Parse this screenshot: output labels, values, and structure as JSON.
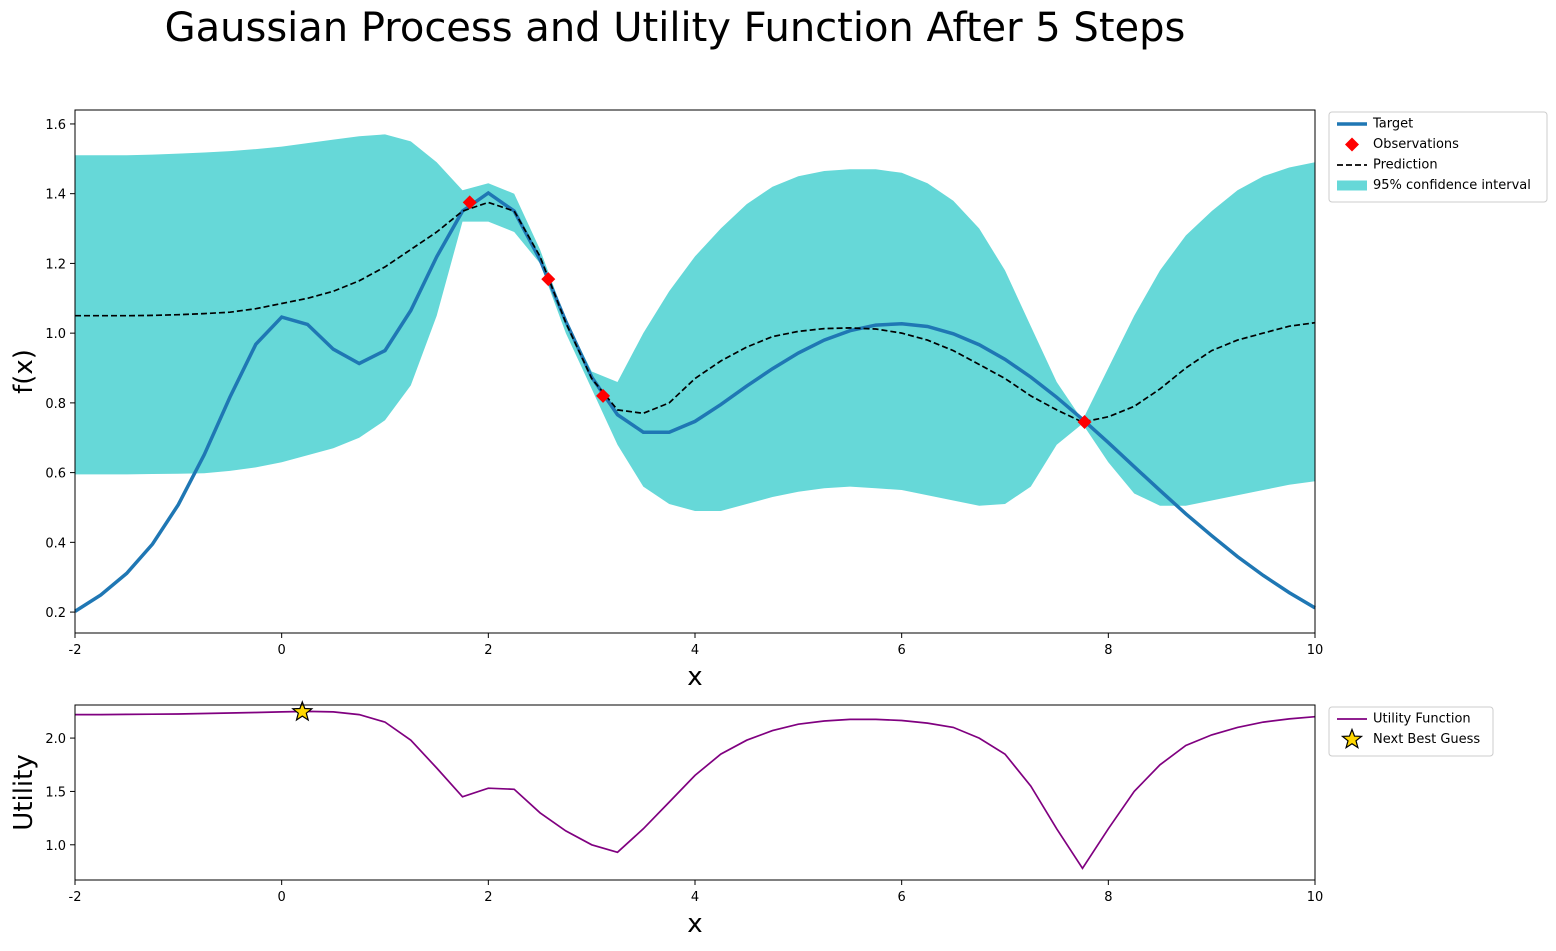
{
  "title": "Gaussian Process and Utility Function After 5 Steps",
  "chart_data": [
    {
      "type": "line",
      "xlabel": "x",
      "ylabel": "f(x)",
      "xlim": [
        -2,
        10
      ],
      "ylim": [
        0.14,
        1.64
      ],
      "xticks": [
        -2,
        0,
        2,
        4,
        6,
        8,
        10
      ],
      "yticks": [
        0.2,
        0.4,
        0.6,
        0.8,
        {
          "value": 1,
          "label": "1.0"
        },
        1.2,
        1.4,
        1.6
      ],
      "legend": "outside-upper-right",
      "x": [
        -2,
        -1.75,
        -1.5,
        -1.25,
        -1,
        -0.75,
        -0.5,
        -0.25,
        0,
        0.25,
        0.5,
        0.75,
        1,
        1.25,
        1.5,
        1.75,
        2,
        2.25,
        2.5,
        2.75,
        3,
        3.25,
        3.5,
        3.75,
        4,
        4.25,
        4.5,
        4.75,
        5,
        5.25,
        5.5,
        5.75,
        6,
        6.25,
        6.5,
        6.75,
        7,
        7.25,
        7.5,
        7.75,
        8,
        8.25,
        8.5,
        8.75,
        9,
        9.25,
        9.5,
        9.75,
        10
      ],
      "series": [
        {
          "name": "Target",
          "kind": "line",
          "color": "#1f77b4",
          "values": [
            0.202,
            0.249,
            0.311,
            0.395,
            0.508,
            0.651,
            0.817,
            0.968,
            1.046,
            1.025,
            0.954,
            0.913,
            0.95,
            1.065,
            1.219,
            1.35,
            1.402,
            1.35,
            1.211,
            1.034,
            0.874,
            0.766,
            0.716,
            0.716,
            0.747,
            0.795,
            0.848,
            0.898,
            0.943,
            0.98,
            1.007,
            1.023,
            1.027,
            1.019,
            0.998,
            0.967,
            0.925,
            0.874,
            0.816,
            0.753,
            0.686,
            0.617,
            0.549,
            0.482,
            0.419,
            0.359,
            0.305,
            0.256,
            0.212
          ]
        },
        {
          "name": "Observations",
          "kind": "scatter",
          "marker": "diamond",
          "color": "#ff0000",
          "x": [
            1.82,
            2.58,
            3.11,
            7.77
          ],
          "values": [
            1.375,
            1.155,
            0.82,
            0.745
          ]
        },
        {
          "name": "Prediction",
          "kind": "line",
          "dashed": true,
          "color": "#000000",
          "values": [
            1.05,
            1.05,
            1.05,
            1.051,
            1.053,
            1.056,
            1.06,
            1.07,
            1.085,
            1.1,
            1.12,
            1.15,
            1.19,
            1.24,
            1.29,
            1.35,
            1.375,
            1.35,
            1.22,
            1.03,
            0.87,
            0.78,
            0.77,
            0.8,
            0.87,
            0.92,
            0.96,
            0.99,
            1.005,
            1.013,
            1.015,
            1.012,
            1.0,
            0.98,
            0.95,
            0.91,
            0.87,
            0.82,
            0.78,
            0.745,
            0.76,
            0.79,
            0.84,
            0.9,
            0.95,
            0.98,
            1.0,
            1.02,
            1.03
          ]
        },
        {
          "name": "95% confidence interval",
          "kind": "band",
          "color": "#66d8d8",
          "lower": [
            0.595,
            0.595,
            0.595,
            0.596,
            0.597,
            0.598,
            0.605,
            0.615,
            0.63,
            0.65,
            0.67,
            0.7,
            0.75,
            0.85,
            1.05,
            1.32,
            1.32,
            1.29,
            1.2,
            1.0,
            0.84,
            0.68,
            0.56,
            0.51,
            0.49,
            0.49,
            0.51,
            0.53,
            0.545,
            0.555,
            0.56,
            0.555,
            0.55,
            0.535,
            0.52,
            0.505,
            0.51,
            0.56,
            0.68,
            0.74,
            0.63,
            0.54,
            0.505,
            0.505,
            0.52,
            0.535,
            0.55,
            0.565,
            0.575
          ],
          "upper": [
            1.51,
            1.51,
            1.51,
            1.512,
            1.515,
            1.518,
            1.522,
            1.528,
            1.535,
            1.545,
            1.555,
            1.565,
            1.57,
            1.55,
            1.49,
            1.41,
            1.43,
            1.4,
            1.24,
            1.04,
            0.89,
            0.86,
            1.0,
            1.12,
            1.22,
            1.3,
            1.37,
            1.42,
            1.45,
            1.465,
            1.47,
            1.47,
            1.46,
            1.43,
            1.38,
            1.3,
            1.18,
            1.02,
            0.86,
            0.75,
            0.9,
            1.05,
            1.18,
            1.28,
            1.35,
            1.41,
            1.45,
            1.475,
            1.49
          ]
        }
      ]
    },
    {
      "type": "line",
      "xlabel": "x",
      "ylabel": "Utility",
      "xlim": [
        -2,
        10
      ],
      "ylim": [
        0.67,
        2.31
      ],
      "xticks": [
        -2,
        0,
        2,
        4,
        6,
        8,
        10
      ],
      "yticks": [
        {
          "value": 1,
          "label": "1.0"
        },
        1.5,
        {
          "value": 2,
          "label": "2.0"
        }
      ],
      "legend": "outside-upper-right",
      "x": [
        -2,
        -1.75,
        -1.5,
        -1.25,
        -1,
        -0.75,
        -0.5,
        -0.25,
        0,
        0.25,
        0.5,
        0.75,
        1,
        1.25,
        1.5,
        1.75,
        2,
        2.25,
        2.5,
        2.75,
        3,
        3.25,
        3.5,
        3.75,
        4,
        4.25,
        4.5,
        4.75,
        5,
        5.25,
        5.5,
        5.75,
        6,
        6.25,
        6.5,
        6.75,
        7,
        7.25,
        7.5,
        7.75,
        8,
        8.25,
        8.5,
        8.75,
        9,
        9.25,
        9.5,
        9.75,
        10
      ],
      "series": [
        {
          "name": "Utility Function",
          "kind": "line",
          "color": "#800080",
          "values": [
            2.22,
            2.22,
            2.222,
            2.224,
            2.226,
            2.23,
            2.235,
            2.24,
            2.245,
            2.25,
            2.245,
            2.22,
            2.15,
            1.98,
            1.72,
            1.45,
            1.53,
            1.52,
            1.3,
            1.13,
            1.0,
            0.93,
            1.15,
            1.4,
            1.65,
            1.85,
            1.98,
            2.07,
            2.13,
            2.16,
            2.175,
            2.175,
            2.165,
            2.14,
            2.1,
            2.0,
            1.85,
            1.55,
            1.15,
            0.78,
            1.15,
            1.5,
            1.75,
            1.93,
            2.03,
            2.1,
            2.15,
            2.18,
            2.2
          ]
        },
        {
          "name": "Next Best Guess",
          "kind": "scatter",
          "marker": "star",
          "color": "#ffd700",
          "x": [
            0.2
          ],
          "values": [
            2.245
          ]
        }
      ]
    }
  ]
}
